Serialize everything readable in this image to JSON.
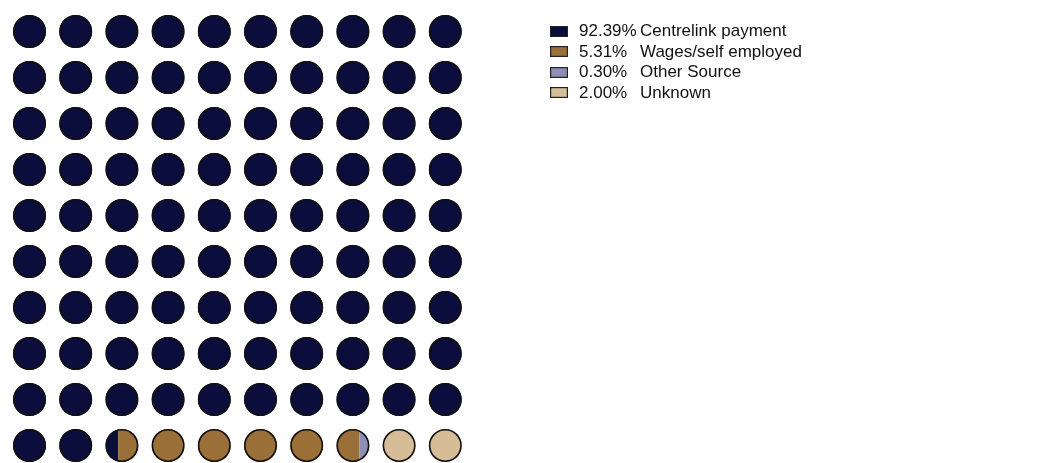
{
  "chart_data": {
    "type": "other",
    "categories": [
      "Centrelink payment",
      "Wages/self employed",
      "Other Source",
      "Unknown"
    ],
    "values": [
      92.39,
      5.31,
      0.3,
      2.0
    ],
    "value_labels": [
      "92.39%",
      "5.31%",
      "0.30%",
      "2.00%"
    ],
    "colors": [
      "#0b0d3c",
      "#9a7038",
      "#8e8db6",
      "#d6bd98"
    ]
  }
}
